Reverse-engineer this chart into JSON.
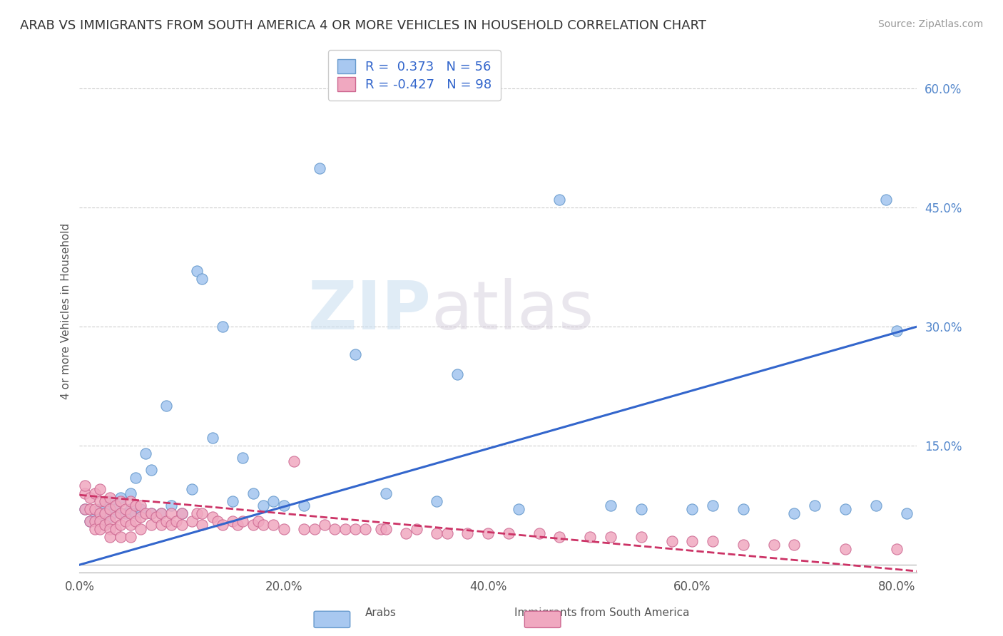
{
  "title": "ARAB VS IMMIGRANTS FROM SOUTH AMERICA 4 OR MORE VEHICLES IN HOUSEHOLD CORRELATION CHART",
  "source": "Source: ZipAtlas.com",
  "ylabel": "4 or more Vehicles in Household",
  "xlim": [
    0.0,
    0.82
  ],
  "ylim": [
    -0.01,
    0.65
  ],
  "xticks": [
    0.0,
    0.2,
    0.4,
    0.6,
    0.8
  ],
  "xticklabels": [
    "0.0%",
    "20.0%",
    "40.0%",
    "60.0%",
    "80.0%"
  ],
  "yticks": [
    0.0,
    0.15,
    0.3,
    0.45,
    0.6
  ],
  "yticklabels": [
    "",
    "15.0%",
    "30.0%",
    "45.0%",
    "60.0%"
  ],
  "arab_R": 0.373,
  "arab_N": 56,
  "immigrants_R": -0.427,
  "immigrants_N": 98,
  "legend_labels": [
    "Arabs",
    "Immigrants from South America"
  ],
  "arab_color": "#a8c8f0",
  "arab_edge_color": "#6699cc",
  "immigrants_color": "#f0a8c0",
  "immigrants_edge_color": "#cc6690",
  "trend_arab_color": "#3366cc",
  "trend_immigrants_color": "#cc3366",
  "arab_points_x": [
    0.005,
    0.01,
    0.015,
    0.02,
    0.02,
    0.025,
    0.025,
    0.03,
    0.03,
    0.035,
    0.04,
    0.04,
    0.045,
    0.05,
    0.05,
    0.055,
    0.055,
    0.06,
    0.065,
    0.07,
    0.07,
    0.08,
    0.085,
    0.09,
    0.1,
    0.11,
    0.115,
    0.12,
    0.13,
    0.14,
    0.15,
    0.16,
    0.17,
    0.18,
    0.19,
    0.2,
    0.22,
    0.235,
    0.27,
    0.3,
    0.35,
    0.37,
    0.43,
    0.47,
    0.52,
    0.55,
    0.6,
    0.62,
    0.65,
    0.7,
    0.72,
    0.75,
    0.78,
    0.79,
    0.8,
    0.81
  ],
  "arab_points_y": [
    0.07,
    0.055,
    0.06,
    0.06,
    0.07,
    0.05,
    0.075,
    0.06,
    0.08,
    0.07,
    0.065,
    0.085,
    0.065,
    0.07,
    0.09,
    0.065,
    0.11,
    0.07,
    0.14,
    0.065,
    0.12,
    0.065,
    0.2,
    0.075,
    0.065,
    0.095,
    0.37,
    0.36,
    0.16,
    0.3,
    0.08,
    0.135,
    0.09,
    0.075,
    0.08,
    0.075,
    0.075,
    0.5,
    0.265,
    0.09,
    0.08,
    0.24,
    0.07,
    0.46,
    0.075,
    0.07,
    0.07,
    0.075,
    0.07,
    0.065,
    0.075,
    0.07,
    0.075,
    0.46,
    0.295,
    0.065
  ],
  "immigrants_points_x": [
    0.005,
    0.005,
    0.005,
    0.01,
    0.01,
    0.01,
    0.015,
    0.015,
    0.015,
    0.015,
    0.02,
    0.02,
    0.02,
    0.02,
    0.02,
    0.025,
    0.025,
    0.025,
    0.03,
    0.03,
    0.03,
    0.03,
    0.03,
    0.035,
    0.035,
    0.035,
    0.04,
    0.04,
    0.04,
    0.04,
    0.045,
    0.045,
    0.05,
    0.05,
    0.05,
    0.05,
    0.055,
    0.055,
    0.06,
    0.06,
    0.06,
    0.065,
    0.07,
    0.07,
    0.075,
    0.08,
    0.08,
    0.085,
    0.09,
    0.09,
    0.095,
    0.1,
    0.1,
    0.11,
    0.115,
    0.12,
    0.12,
    0.13,
    0.135,
    0.14,
    0.15,
    0.155,
    0.16,
    0.17,
    0.175,
    0.18,
    0.19,
    0.2,
    0.21,
    0.22,
    0.23,
    0.24,
    0.25,
    0.26,
    0.27,
    0.28,
    0.295,
    0.3,
    0.32,
    0.33,
    0.35,
    0.36,
    0.38,
    0.4,
    0.42,
    0.45,
    0.47,
    0.5,
    0.52,
    0.55,
    0.58,
    0.6,
    0.62,
    0.65,
    0.68,
    0.7,
    0.75,
    0.8
  ],
  "immigrants_points_y": [
    0.09,
    0.07,
    0.1,
    0.085,
    0.07,
    0.055,
    0.09,
    0.07,
    0.055,
    0.045,
    0.095,
    0.08,
    0.065,
    0.055,
    0.045,
    0.08,
    0.065,
    0.05,
    0.085,
    0.07,
    0.055,
    0.045,
    0.035,
    0.075,
    0.06,
    0.045,
    0.08,
    0.065,
    0.05,
    0.035,
    0.07,
    0.055,
    0.08,
    0.065,
    0.05,
    0.035,
    0.075,
    0.055,
    0.075,
    0.06,
    0.045,
    0.065,
    0.065,
    0.05,
    0.06,
    0.065,
    0.05,
    0.055,
    0.065,
    0.05,
    0.055,
    0.065,
    0.05,
    0.055,
    0.065,
    0.065,
    0.05,
    0.06,
    0.055,
    0.05,
    0.055,
    0.05,
    0.055,
    0.05,
    0.055,
    0.05,
    0.05,
    0.045,
    0.13,
    0.045,
    0.045,
    0.05,
    0.045,
    0.045,
    0.045,
    0.045,
    0.045,
    0.045,
    0.04,
    0.045,
    0.04,
    0.04,
    0.04,
    0.04,
    0.04,
    0.04,
    0.035,
    0.035,
    0.035,
    0.035,
    0.03,
    0.03,
    0.03,
    0.025,
    0.025,
    0.025,
    0.02,
    0.02
  ],
  "watermark_zip": "ZIP",
  "watermark_atlas": "atlas",
  "background_color": "#ffffff",
  "grid_color": "#cccccc"
}
